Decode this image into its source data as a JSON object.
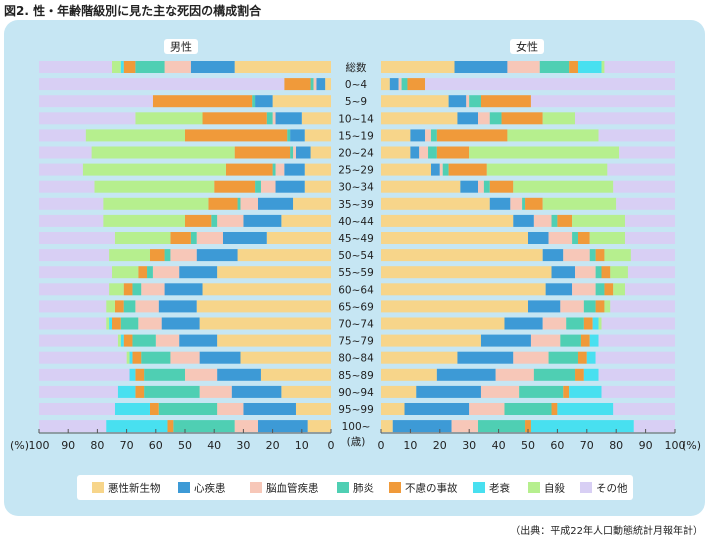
{
  "title": "図2. 性・年齢階級別に見た主な死因の構成割合",
  "source": "（出典：平成22年人口動態統計月報年計）",
  "chart_data": {
    "type": "bar",
    "orientation": "horizontal-stacked-mirrored",
    "panels": [
      "男性",
      "女性"
    ],
    "row_header": "総数",
    "age_unit": "(歳)",
    "axis_unit": "(%)",
    "xlim": [
      0,
      100
    ],
    "left_ticks": [
      "100",
      "90",
      "80",
      "70",
      "60",
      "50",
      "40",
      "30",
      "20",
      "10",
      "0"
    ],
    "right_ticks": [
      "0",
      "10",
      "20",
      "30",
      "40",
      "50",
      "60",
      "70",
      "80",
      "90",
      "100"
    ],
    "categories": [
      "総数",
      "0~4",
      "5~9",
      "10~14",
      "15~19",
      "20~24",
      "25~29",
      "30~34",
      "35~39",
      "40~44",
      "45~49",
      "50~54",
      "55~59",
      "60~64",
      "65~69",
      "70~74",
      "75~79",
      "80~84",
      "85~89",
      "90~94",
      "95~99",
      "100~"
    ],
    "causes": [
      {
        "name": "悪性新生物",
        "color": "#f7d58a"
      },
      {
        "name": "心疾患",
        "color": "#3d9ad6"
      },
      {
        "name": "脳血管疾患",
        "color": "#f7c7b8"
      },
      {
        "name": "肺炎",
        "color": "#4fcfb3"
      },
      {
        "name": "不慮の事故",
        "color": "#f09a3a"
      },
      {
        "name": "老衰",
        "color": "#48e0f0"
      },
      {
        "name": "自殺",
        "color": "#b6ef8e"
      },
      {
        "name": "その他",
        "color": "#d8cff4"
      }
    ],
    "male": [
      [
        33,
        15,
        9,
        10,
        4,
        1,
        3,
        25
      ],
      [
        2,
        3,
        1,
        1,
        9,
        0,
        0,
        84
      ],
      [
        20,
        6,
        0,
        1,
        34,
        0,
        0,
        39
      ],
      [
        10,
        9,
        1,
        2,
        22,
        0,
        23,
        33
      ],
      [
        9,
        5,
        0,
        1,
        35,
        0,
        34,
        16
      ],
      [
        7,
        5,
        1,
        1,
        19,
        0,
        49,
        18
      ],
      [
        9,
        7,
        3,
        1,
        16,
        0,
        49,
        15
      ],
      [
        9,
        10,
        5,
        2,
        14,
        0,
        41,
        19
      ],
      [
        13,
        12,
        6,
        1,
        10,
        0,
        36,
        22
      ],
      [
        17,
        13,
        9,
        2,
        9,
        0,
        28,
        22
      ],
      [
        22,
        15,
        9,
        2,
        7,
        0,
        19,
        26
      ],
      [
        32,
        14,
        9,
        2,
        5,
        0,
        14,
        24
      ],
      [
        39,
        13,
        9,
        2,
        3,
        0,
        9,
        25
      ],
      [
        44,
        13,
        8,
        3,
        3,
        0,
        5,
        24
      ],
      [
        46,
        13,
        8,
        4,
        3,
        0,
        3,
        23
      ],
      [
        45,
        13,
        8,
        6,
        3,
        1,
        1,
        23
      ],
      [
        39,
        13,
        8,
        8,
        3,
        1,
        1,
        27
      ],
      [
        31,
        14,
        10,
        10,
        3,
        1,
        1,
        30
      ],
      [
        24,
        15,
        11,
        14,
        3,
        2,
        0,
        31
      ],
      [
        17,
        17,
        11,
        19,
        3,
        6,
        0,
        27
      ],
      [
        12,
        18,
        9,
        20,
        3,
        12,
        0,
        26
      ],
      [
        8,
        17,
        8,
        21,
        2,
        21,
        0,
        23
      ]
    ],
    "female": [
      [
        25,
        18,
        11,
        10,
        3,
        8,
        1,
        24
      ],
      [
        3,
        3,
        1,
        2,
        6,
        0,
        0,
        85
      ],
      [
        23,
        6,
        1,
        4,
        17,
        0,
        0,
        49
      ],
      [
        26,
        7,
        4,
        4,
        14,
        0,
        11,
        34
      ],
      [
        10,
        5,
        2,
        2,
        24,
        0,
        31,
        26
      ],
      [
        10,
        3,
        3,
        3,
        11,
        0,
        51,
        19
      ],
      [
        17,
        3,
        1,
        2,
        13,
        0,
        41,
        23
      ],
      [
        27,
        6,
        2,
        2,
        8,
        0,
        34,
        21
      ],
      [
        37,
        7,
        4,
        1,
        6,
        0,
        25,
        20
      ],
      [
        45,
        7,
        6,
        2,
        5,
        0,
        18,
        17
      ],
      [
        50,
        7,
        8,
        2,
        4,
        0,
        12,
        17
      ],
      [
        55,
        7,
        9,
        2,
        3,
        0,
        9,
        15
      ],
      [
        58,
        8,
        7,
        2,
        3,
        0,
        6,
        16
      ],
      [
        56,
        9,
        8,
        3,
        3,
        0,
        4,
        17
      ],
      [
        50,
        11,
        8,
        4,
        3,
        0,
        2,
        22
      ],
      [
        42,
        13,
        8,
        6,
        3,
        2,
        1,
        25
      ],
      [
        34,
        17,
        10,
        7,
        3,
        3,
        0,
        26
      ],
      [
        26,
        19,
        12,
        10,
        3,
        3,
        0,
        27
      ],
      [
        19,
        20,
        13,
        14,
        3,
        5,
        0,
        26
      ],
      [
        12,
        22,
        13,
        15,
        2,
        11,
        0,
        25
      ],
      [
        8,
        22,
        12,
        16,
        2,
        19,
        0,
        21
      ],
      [
        4,
        20,
        9,
        16,
        2,
        35,
        0,
        14
      ]
    ]
  }
}
